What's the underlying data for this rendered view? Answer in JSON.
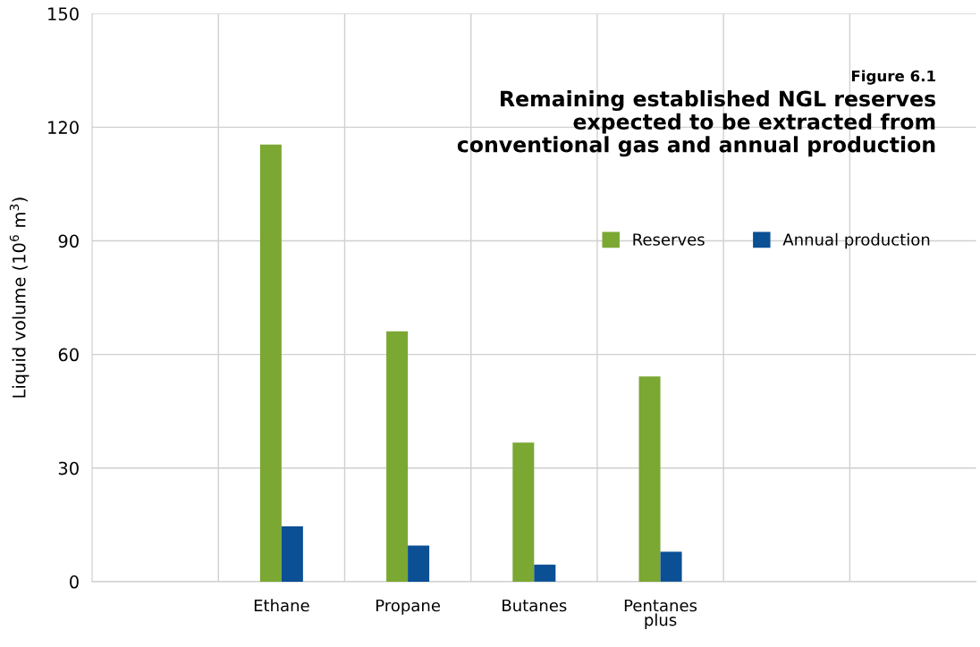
{
  "chart_data": {
    "type": "bar",
    "subtitle": "Figure 6.1",
    "title": "Remaining established NGL reserves\nexpected to be extracted from\nconventional gas and annual production",
    "ylabel": "Liquid volume (10$^{6}$ m$^{3}$)",
    "categories": [
      null,
      "Ethane",
      "Propane",
      "Butanes",
      "Pentanes\nplus",
      null,
      null
    ],
    "series": [
      {
        "name": "Reserves",
        "color": "#7ba733",
        "values": [
          null,
          115.4,
          66.1,
          36.7,
          54.2,
          null,
          null
        ]
      },
      {
        "name": "Annual production",
        "color": "#0b4f94",
        "values": [
          null,
          14.6,
          9.5,
          4.5,
          7.9,
          null,
          null
        ]
      }
    ],
    "ylim": [
      0,
      150
    ],
    "yticks": [
      0,
      30,
      60,
      90,
      120,
      150
    ],
    "grid": true,
    "legend": "top right"
  }
}
